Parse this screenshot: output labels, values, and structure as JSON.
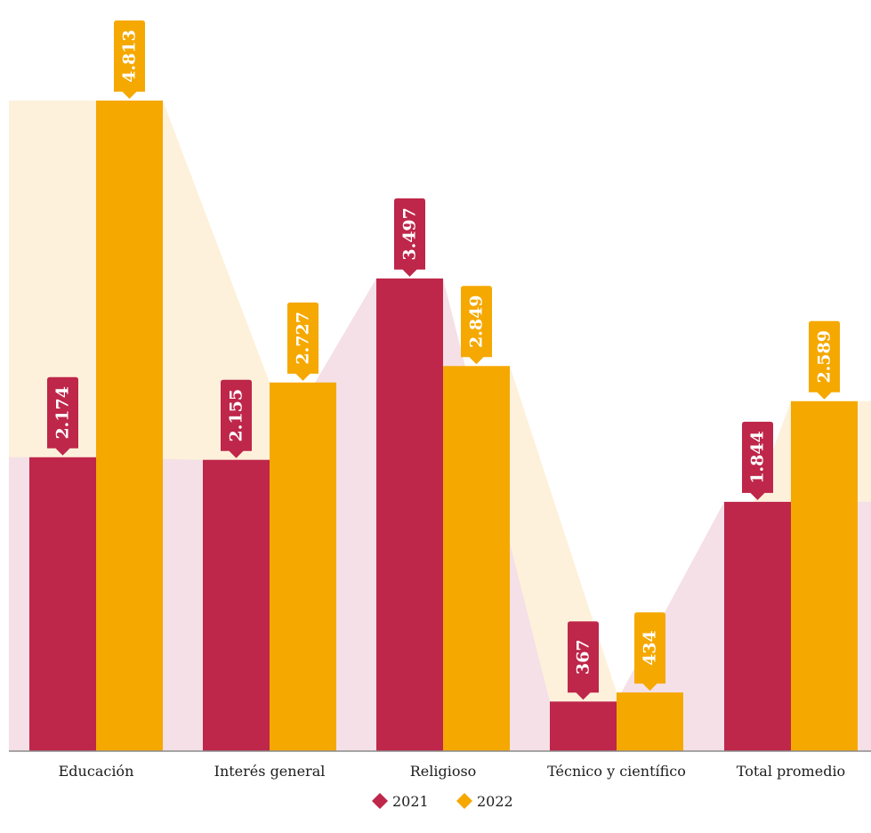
{
  "chart_data": {
    "type": "bar",
    "categories": [
      "Educación",
      "Interés general",
      "Religioso",
      "Técnico y científico",
      "Total promedio"
    ],
    "series": [
      {
        "name": "2021",
        "values": [
          2174,
          2155,
          3497,
          367,
          1844
        ],
        "labels": [
          "2.174",
          "2.155",
          "3.497",
          "367",
          "1.844"
        ],
        "color": "#be264a"
      },
      {
        "name": "2022",
        "values": [
          4813,
          2727,
          2849,
          434,
          2589
        ],
        "labels": [
          "4.813",
          "2.727",
          "2.849",
          "434",
          "2.589"
        ],
        "color": "#f5a800"
      }
    ],
    "ylim": [
      0,
      5000
    ],
    "grid": false,
    "legend_position": "bottom-center",
    "band_colors": {
      "2021": "#f4e0e6",
      "2022": "#fdf1db"
    },
    "axis_color": "#8a8a8a",
    "title": "",
    "xlabel": "",
    "ylabel": ""
  }
}
